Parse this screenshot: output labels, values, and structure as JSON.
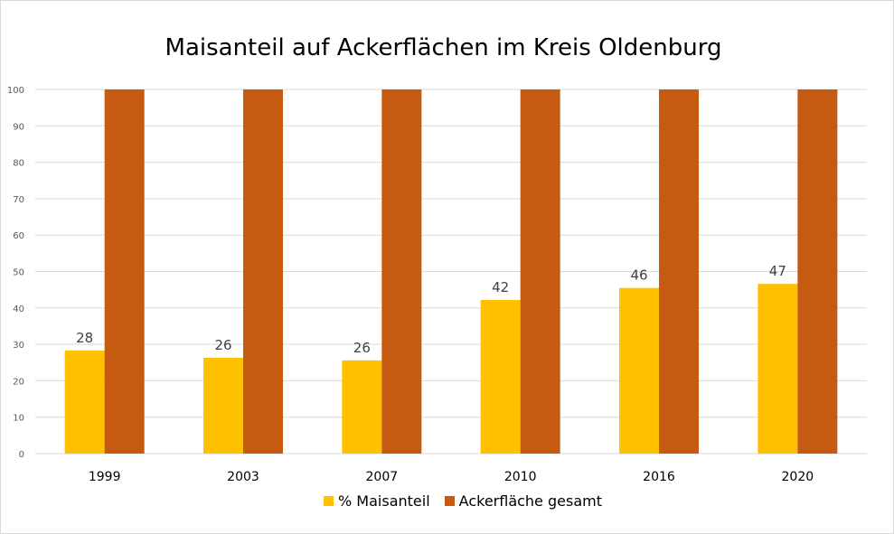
{
  "chart_data": {
    "type": "bar",
    "title": "Maisanteil auf Ackerflächen im Kreis Oldenburg",
    "xlabel": "",
    "ylabel": "",
    "categories": [
      "1999",
      "2003",
      "2007",
      "2010",
      "2016",
      "2020"
    ],
    "series": [
      {
        "name": "% Maisanteil",
        "color": "#FFC000",
        "values": [
          28.3,
          26.3,
          25.6,
          42.2,
          45.5,
          46.6
        ],
        "labels": [
          "28",
          "26",
          "26",
          "42",
          "46",
          "47"
        ]
      },
      {
        "name": "Ackerfläche gesamt",
        "color": "#C55A11",
        "values": [
          100,
          100,
          100,
          100,
          100,
          100
        ]
      }
    ],
    "ylim": [
      0,
      100
    ],
    "yticks": [
      "0",
      "10",
      "20",
      "30",
      "40",
      "50",
      "60",
      "70",
      "80",
      "90",
      "100"
    ],
    "grid": true,
    "legend": "bottom"
  }
}
